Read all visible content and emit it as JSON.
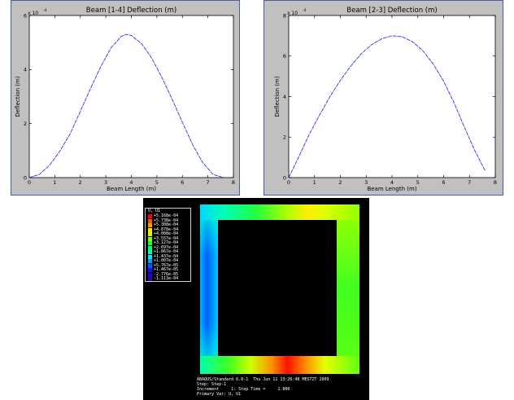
{
  "chart_data": [
    {
      "type": "line",
      "title": "Beam [1-4] Deflection (m)",
      "xlabel": "Beam Length (m)",
      "ylabel": "Deflection (m)",
      "y_exponent_label": "x 10",
      "y_exponent_power": "-4",
      "xlim": [
        0,
        8
      ],
      "ylim": [
        0,
        6
      ],
      "xticks": [
        "0",
        "1",
        "2",
        "3",
        "4",
        "5",
        "6",
        "7",
        "8"
      ],
      "yticks": [
        "0",
        "2",
        "4",
        "6"
      ],
      "grid": false,
      "color": "#3030ff",
      "series": [
        {
          "x": [
            0,
            0.4,
            0.8,
            1.2,
            1.6,
            2.0,
            2.4,
            2.8,
            3.2,
            3.6,
            3.8,
            4.0,
            4.4,
            4.8,
            5.2,
            5.6,
            6.0,
            6.4,
            6.8,
            7.2,
            7.6
          ],
          "values": [
            0,
            0.12,
            0.46,
            0.98,
            1.62,
            2.45,
            3.3,
            4.1,
            4.8,
            5.22,
            5.3,
            5.26,
            4.96,
            4.42,
            3.7,
            2.9,
            2.05,
            1.22,
            0.55,
            0.12,
            0
          ]
        }
      ]
    },
    {
      "type": "line",
      "title": "Beam [2-3] Deflection (m)",
      "xlabel": "Beam Length (m)",
      "ylabel": "Deflection (m)",
      "y_exponent_label": "x 10",
      "y_exponent_power": "-4",
      "xlim": [
        0,
        8
      ],
      "ylim": [
        0,
        8
      ],
      "xticks": [
        "0",
        "1",
        "2",
        "3",
        "4",
        "5",
        "6",
        "7",
        "8"
      ],
      "yticks": [
        "0",
        "2",
        "4",
        "6",
        "8"
      ],
      "grid": false,
      "color": "#3030ff",
      "series": [
        {
          "x": [
            0,
            0.4,
            0.8,
            1.2,
            1.6,
            2.0,
            2.4,
            2.8,
            3.2,
            3.6,
            4.0,
            4.4,
            4.8,
            5.2,
            5.6,
            6.0,
            6.4,
            6.8,
            7.2,
            7.6
          ],
          "values": [
            0,
            1.05,
            2.15,
            3.1,
            4.0,
            4.8,
            5.5,
            6.1,
            6.55,
            6.85,
            7.0,
            6.95,
            6.7,
            6.25,
            5.6,
            4.75,
            3.7,
            2.5,
            1.35,
            0.35
          ]
        }
      ]
    }
  ],
  "fea": {
    "legend_title": "U, U1",
    "legend_entries": [
      {
        "label": "+5.168e-04",
        "color": "#ff0000"
      },
      {
        "label": "+5.738e-04",
        "color": "#ff5000"
      },
      {
        "label": "+5.308e-04",
        "color": "#ff9c00"
      },
      {
        "label": "+4.878e-04",
        "color": "#ffe000"
      },
      {
        "label": "+4.008e-04",
        "color": "#d0ff00"
      },
      {
        "label": "+3.557e-04",
        "color": "#80ff00"
      },
      {
        "label": "+3.127e-04",
        "color": "#20ff20"
      },
      {
        "label": "+2.697e-04",
        "color": "#00ff70"
      },
      {
        "label": "+1.867e-04",
        "color": "#00ffc0"
      },
      {
        "label": "+1.437e-04",
        "color": "#00e8ff"
      },
      {
        "label": "+1.007e-04",
        "color": "#00a0ff"
      },
      {
        "label": "+5.767e-05",
        "color": "#0058ff"
      },
      {
        "label": "+1.467e-05",
        "color": "#1010ff"
      },
      {
        "label": "-2.776e-05",
        "color": "#2000d0"
      },
      {
        "label": "-1.113e-04",
        "color": "#3000a0"
      }
    ],
    "info_lines": [
      "ABAQUS/Standard 6.8-1  Thu Jun 11 13:26:48 MESTZT 2009",
      "Step: Step-1",
      "Increment     1: Step Time =     1.000",
      "Primary Var: U, U1"
    ]
  }
}
